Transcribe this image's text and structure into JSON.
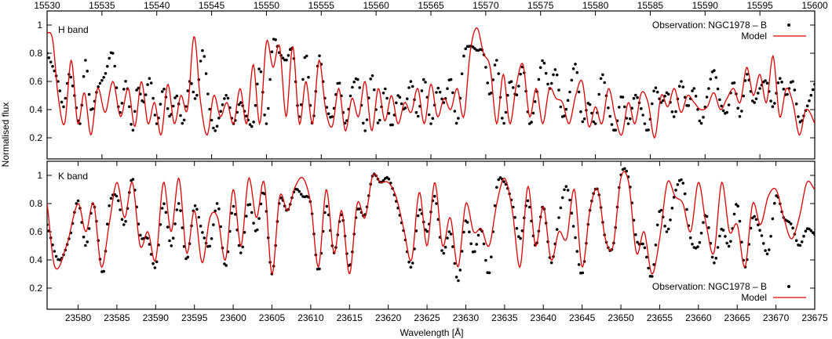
{
  "figure": {
    "ylabel": "Normalised flux",
    "xlabel": "Wavelength [Å]"
  },
  "chart_data": [
    {
      "type": "line",
      "panel_label": "H band",
      "xlim": [
        15530,
        15600
      ],
      "ylim": [
        0.05,
        1.1
      ],
      "x_ticks": [
        15530,
        15535,
        15540,
        15545,
        15550,
        15555,
        15560,
        15565,
        15570,
        15575,
        15580,
        15585,
        15590,
        15595,
        15600
      ],
      "x_tick_labels": [
        "15530",
        "15535",
        "15540",
        "15545",
        "15550",
        "15555",
        "15560",
        "15565",
        "15570",
        "15575",
        "15580",
        "15585",
        "15590",
        "15595",
        "15600"
      ],
      "x_axis_position": "top",
      "y_ticks": [
        0.2,
        0.4,
        0.6,
        0.8,
        1.0
      ],
      "y_tick_labels": [
        "0.2",
        "0.4",
        "0.6",
        "0.8",
        "1"
      ],
      "legend": {
        "placement": "top-right",
        "entries": [
          "Observation: NGC1978 – B",
          "Model"
        ]
      },
      "series": [
        {
          "name": "Observation: NGC1978 – B",
          "style": "points",
          "color": "#000000",
          "anchors_x": [
            15530,
            15531,
            15531.5,
            15532,
            15532.5,
            15533,
            15533.5,
            15534,
            15534.6,
            15535.3,
            15536,
            15536.6,
            15537.2,
            15537.8,
            15538.2,
            15538.8,
            15539.4,
            15540,
            15540.6,
            15541.2,
            15541.8,
            15542.4,
            15543,
            15543.6,
            15544.2,
            15544.8,
            15545.3,
            15545.8,
            15546.4,
            15547,
            15547.6,
            15548.2,
            15548.8,
            15549.4,
            15550,
            15550.6,
            15551.2,
            15551.8,
            15552.4,
            15553,
            15553.6,
            15554.2,
            15554.8,
            15555.4,
            15556,
            15556.6,
            15557.2,
            15557.8,
            15558.4,
            15559,
            15559.6,
            15560.2,
            15560.8,
            15561.4,
            15562,
            15562.6,
            15563.2,
            15563.8,
            15564.4,
            15565,
            15565.6,
            15566.2,
            15566.8,
            15567.4,
            15568,
            15568.6,
            15569.2,
            15569.8,
            15570.4,
            15571,
            15571.6,
            15572.2,
            15572.8,
            15573.4,
            15574,
            15574.6,
            15575.2,
            15575.8,
            15576.4,
            15577,
            15577.6,
            15578.2,
            15578.8,
            15579.4,
            15580,
            15580.6,
            15581.2,
            15581.8,
            15582.4,
            15583,
            15583.6,
            15584.2,
            15584.8,
            15585.4,
            15586,
            15586.6,
            15587.2,
            15587.8,
            15588.4,
            15589,
            15589.6,
            15590.2,
            15590.8,
            15591.4,
            15592,
            15592.6,
            15593.2,
            15593.8,
            15594.4,
            15595,
            15595.6,
            15596.2,
            15596.8,
            15597.4,
            15598,
            15598.6,
            15599.2,
            15600
          ],
          "anchors_y": [
            0.8,
            0.6,
            0.42,
            0.65,
            0.5,
            0.3,
            0.75,
            0.4,
            0.55,
            0.65,
            0.8,
            0.38,
            0.6,
            0.25,
            0.55,
            0.45,
            0.62,
            0.3,
            0.55,
            0.35,
            0.5,
            0.3,
            0.6,
            0.48,
            0.82,
            0.42,
            0.25,
            0.38,
            0.5,
            0.3,
            0.45,
            0.35,
            0.3,
            0.7,
            0.3,
            0.88,
            0.8,
            0.75,
            0.82,
            0.35,
            0.8,
            0.3,
            0.78,
            0.45,
            0.35,
            0.6,
            0.3,
            0.55,
            0.6,
            0.25,
            0.65,
            0.3,
            0.55,
            0.28,
            0.5,
            0.4,
            0.6,
            0.35,
            0.62,
            0.3,
            0.55,
            0.45,
            0.62,
            0.3,
            0.78,
            0.85,
            0.82,
            0.8,
            0.5,
            0.75,
            0.3,
            0.6,
            0.5,
            0.7,
            0.3,
            0.5,
            0.75,
            0.55,
            0.68,
            0.35,
            0.5,
            0.72,
            0.32,
            0.45,
            0.3,
            0.65,
            0.4,
            0.25,
            0.5,
            0.3,
            0.5,
            0.4,
            0.25,
            0.55,
            0.45,
            0.52,
            0.35,
            0.6,
            0.42,
            0.55,
            0.3,
            0.5,
            0.68,
            0.45,
            0.38,
            0.6,
            0.35,
            0.65,
            0.45,
            0.55,
            0.6,
            0.42,
            0.62,
            0.5,
            0.6,
            0.32,
            0.4,
            0.58
          ]
        },
        {
          "name": "Model",
          "style": "line",
          "color": "#dd0000",
          "anchors_x": [
            15530,
            15530.5,
            15531,
            15531.6,
            15532.2,
            15532.8,
            15533.4,
            15534,
            15534.6,
            15535.3,
            15536,
            15536.7,
            15537.4,
            15538,
            15538.6,
            15539.2,
            15539.8,
            15540.4,
            15541,
            15541.6,
            15542.2,
            15542.8,
            15543.4,
            15544,
            15544.6,
            15545.2,
            15545.8,
            15546.4,
            15547,
            15547.6,
            15548.2,
            15548.8,
            15549.4,
            15550,
            15550.6,
            15551.2,
            15551.8,
            15552.4,
            15553,
            15553.6,
            15554.2,
            15554.8,
            15555.4,
            15556,
            15556.6,
            15557.2,
            15557.8,
            15558.4,
            15559,
            15559.6,
            15560.2,
            15560.8,
            15561.4,
            15562,
            15562.6,
            15563.2,
            15563.8,
            15564.4,
            15565,
            15565.6,
            15566.2,
            15566.8,
            15567.4,
            15568,
            15568.6,
            15569.2,
            15569.8,
            15570.4,
            15571,
            15571.6,
            15572.2,
            15572.8,
            15573.4,
            15574,
            15574.6,
            15575.2,
            15575.8,
            15576.4,
            15577,
            15577.6,
            15578.2,
            15578.8,
            15579.4,
            15580,
            15580.6,
            15581.2,
            15581.8,
            15582.4,
            15583,
            15583.6,
            15584.2,
            15584.8,
            15585.4,
            15586,
            15586.6,
            15587.2,
            15587.8,
            15588.4,
            15589,
            15589.6,
            15590.2,
            15590.8,
            15591.4,
            15592,
            15592.6,
            15593.2,
            15593.8,
            15594.4,
            15595,
            15595.6,
            15596.2,
            15596.8,
            15597.4,
            15598,
            15598.6,
            15599.2,
            15600
          ],
          "anchors_y": [
            0.95,
            0.9,
            0.5,
            0.3,
            0.75,
            0.3,
            0.52,
            0.22,
            0.55,
            0.38,
            0.6,
            0.35,
            0.55,
            0.28,
            0.6,
            0.3,
            0.45,
            0.22,
            0.58,
            0.3,
            0.5,
            0.4,
            0.92,
            0.45,
            0.22,
            0.5,
            0.35,
            0.45,
            0.3,
            0.55,
            0.3,
            0.72,
            0.3,
            0.88,
            0.7,
            0.85,
            0.35,
            0.85,
            0.3,
            0.6,
            0.3,
            0.75,
            0.4,
            0.28,
            0.55,
            0.25,
            0.48,
            0.35,
            0.6,
            0.25,
            0.55,
            0.32,
            0.5,
            0.3,
            0.45,
            0.38,
            0.55,
            0.3,
            0.58,
            0.35,
            0.48,
            0.4,
            0.55,
            0.35,
            0.82,
            0.98,
            0.8,
            0.7,
            0.3,
            0.65,
            0.3,
            0.58,
            0.72,
            0.35,
            0.55,
            0.3,
            0.55,
            0.48,
            0.45,
            0.3,
            0.5,
            0.6,
            0.28,
            0.42,
            0.3,
            0.55,
            0.35,
            0.22,
            0.45,
            0.3,
            0.52,
            0.45,
            0.2,
            0.5,
            0.42,
            0.55,
            0.38,
            0.5,
            0.45,
            0.4,
            0.42,
            0.52,
            0.4,
            0.48,
            0.55,
            0.45,
            0.7,
            0.5,
            0.65,
            0.45,
            0.78,
            0.35,
            0.55,
            0.45,
            0.22,
            0.4,
            0.3,
            0.25
          ]
        }
      ]
    },
    {
      "type": "line",
      "panel_label": "K band",
      "xlim": [
        23576,
        23675
      ],
      "ylim": [
        0.05,
        1.1
      ],
      "x_ticks": [
        23580,
        23585,
        23590,
        23595,
        23600,
        23605,
        23610,
        23615,
        23620,
        23625,
        23630,
        23635,
        23640,
        23645,
        23650,
        23655,
        23660,
        23665,
        23670,
        23675
      ],
      "x_tick_labels": [
        "23580",
        "23585",
        "23590",
        "23595",
        "23600",
        "23605",
        "23610",
        "23615",
        "23620",
        "23625",
        "23630",
        "23635",
        "23640",
        "23645",
        "23650",
        "23655",
        "23660",
        "23665",
        "23670",
        "23675"
      ],
      "x_axis_position": "bottom",
      "y_ticks": [
        0.2,
        0.4,
        0.6,
        0.8,
        1.0
      ],
      "y_tick_labels": [
        "0.2",
        "0.4",
        "0.6",
        "0.8",
        "1"
      ],
      "legend": {
        "placement": "bottom-right",
        "entries": [
          "Observation: NGC1978 – B",
          "Model"
        ]
      },
      "series": [
        {
          "name": "Observation: NGC1978 – B",
          "style": "points",
          "color": "#000000",
          "anchors_x": [
            23576,
            23577.5,
            23579,
            23580,
            23581,
            23582,
            23583.2,
            23584,
            23585,
            23586,
            23587,
            23588,
            23589,
            23590,
            23591,
            23592,
            23593,
            23594,
            23595,
            23596,
            23597,
            23598,
            23599,
            23600,
            23601,
            23602,
            23603,
            23604,
            23605,
            23606,
            23607,
            23608,
            23609,
            23610,
            23611,
            23612,
            23613,
            23614,
            23615,
            23616,
            23617,
            23618,
            23619,
            23620,
            23621,
            23622,
            23623,
            23624,
            23625,
            23626,
            23627,
            23628,
            23629,
            23630,
            23631,
            23632,
            23633,
            23634,
            23635,
            23636,
            23637,
            23638,
            23639,
            23640,
            23641,
            23642,
            23643,
            23644,
            23645,
            23646,
            23647,
            23648,
            23649,
            23650,
            23651,
            23652,
            23653,
            23654,
            23655,
            23656,
            23657,
            23658,
            23659,
            23660,
            23661,
            23662,
            23663,
            23664,
            23665,
            23666,
            23667,
            23668,
            23669,
            23670,
            23671,
            23672,
            23673,
            23674,
            23675
          ],
          "anchors_y": [
            0.65,
            0.4,
            0.58,
            0.82,
            0.5,
            0.8,
            0.3,
            0.78,
            0.85,
            0.65,
            0.98,
            0.58,
            0.55,
            0.35,
            0.8,
            0.5,
            0.8,
            0.4,
            0.78,
            0.6,
            0.5,
            0.8,
            0.35,
            0.78,
            0.45,
            0.8,
            0.6,
            0.88,
            0.3,
            0.82,
            0.75,
            0.9,
            0.85,
            0.8,
            0.32,
            0.78,
            0.45,
            0.72,
            0.35,
            0.75,
            0.72,
            1.0,
            0.95,
            0.98,
            0.82,
            0.6,
            0.35,
            0.75,
            0.6,
            0.85,
            0.45,
            0.6,
            0.25,
            0.68,
            0.45,
            0.62,
            0.3,
            0.92,
            0.95,
            0.8,
            0.55,
            0.82,
            0.5,
            0.78,
            0.38,
            0.7,
            0.92,
            0.6,
            0.3,
            0.75,
            0.9,
            0.55,
            0.5,
            1.0,
            0.98,
            0.55,
            0.5,
            0.28,
            0.75,
            0.6,
            0.88,
            0.95,
            0.55,
            0.5,
            0.72,
            0.38,
            0.62,
            0.5,
            0.8,
            0.35,
            0.7,
            0.6,
            0.45,
            0.85,
            0.7,
            0.65,
            0.5,
            0.62,
            0.58
          ]
        },
        {
          "name": "Model",
          "style": "line",
          "color": "#dd0000",
          "anchors_x": [
            23576,
            23577,
            23578.5,
            23580,
            23581,
            23582,
            23583,
            23584,
            23585,
            23586,
            23587,
            23588,
            23589,
            23590,
            23591,
            23592,
            23593,
            23594,
            23595,
            23596,
            23597,
            23598,
            23599,
            23600,
            23601,
            23602,
            23603,
            23604,
            23605,
            23606,
            23607,
            23608,
            23609,
            23610,
            23611,
            23612,
            23613,
            23614,
            23615,
            23616,
            23617,
            23618,
            23619,
            23620,
            23621,
            23622,
            23623,
            23624,
            23625,
            23626,
            23627,
            23628,
            23629,
            23630,
            23631,
            23632,
            23633,
            23634,
            23635,
            23636,
            23637,
            23638,
            23639,
            23640,
            23641,
            23642,
            23643,
            23644,
            23645,
            23646,
            23647,
            23648,
            23649,
            23650,
            23651,
            23652,
            23653,
            23654,
            23655,
            23656,
            23657,
            23658,
            23659,
            23660,
            23661,
            23662,
            23663,
            23664,
            23665,
            23666,
            23667,
            23668,
            23669,
            23670,
            23671,
            23672,
            23673,
            23674,
            23675
          ],
          "anchors_y": [
            0.8,
            0.35,
            0.5,
            0.8,
            0.6,
            0.8,
            0.35,
            0.65,
            0.95,
            0.7,
            0.95,
            0.5,
            0.6,
            0.4,
            0.95,
            0.6,
            0.98,
            0.45,
            0.75,
            0.38,
            0.7,
            0.7,
            0.4,
            0.9,
            0.5,
            0.98,
            0.7,
            0.95,
            0.3,
            0.85,
            0.75,
            0.92,
            0.98,
            0.8,
            0.35,
            0.9,
            0.45,
            0.75,
            0.3,
            0.8,
            0.7,
            1.0,
            0.95,
            0.95,
            0.85,
            0.62,
            0.4,
            0.88,
            0.5,
            0.95,
            0.5,
            0.7,
            0.35,
            0.8,
            0.6,
            0.62,
            0.5,
            0.8,
            0.98,
            0.75,
            0.35,
            0.92,
            0.5,
            0.78,
            0.4,
            0.6,
            0.55,
            0.9,
            0.35,
            0.75,
            0.9,
            0.55,
            0.5,
            0.98,
            0.95,
            0.45,
            0.6,
            0.3,
            0.55,
            0.95,
            0.85,
            0.8,
            0.6,
            0.95,
            0.65,
            0.45,
            0.95,
            0.6,
            0.65,
            0.35,
            0.8,
            0.65,
            0.85,
            0.9,
            0.7,
            0.55,
            0.7,
            0.95,
            0.9
          ]
        }
      ]
    }
  ]
}
